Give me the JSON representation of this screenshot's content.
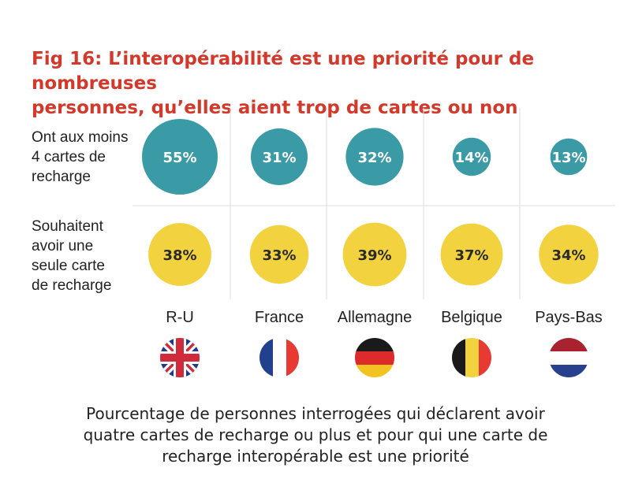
{
  "title": {
    "line1": "Fig 16: L’interopérabilité est une priorité pour de nombreuses",
    "line2": "personnes, qu’elles aient trop de cartes ou non"
  },
  "caption": {
    "line1": "Pourcentage de personnes interrogées qui déclarent avoir",
    "line2": "quatre cartes de recharge ou plus et pour qui une carte de",
    "line3": "recharge interopérable est une priorité"
  },
  "colors": {
    "title": "#d2392b",
    "series_1": "#3a9aa5",
    "series_2": "#f3d23f",
    "bubble_text_light": "#ffffff",
    "bubble_text_dark": "#2b2b2b",
    "grid": "#dddddd"
  },
  "chart_data": {
    "type": "bubble-matrix",
    "unit": "%",
    "categories": [
      "R-U",
      "France",
      "Allemagne",
      "Belgique",
      "Pays-Bas"
    ],
    "series": [
      {
        "name": "Ont aux moins 4 cartes de recharge",
        "label_lines": [
          "Ont aux moins",
          "4 cartes de",
          "recharge"
        ],
        "values": [
          55,
          31,
          32,
          14,
          13
        ],
        "value_labels": [
          "55%",
          "31%",
          "32%",
          "14%",
          "13%"
        ]
      },
      {
        "name": "Souhaitent avoir une seule carte de recharge",
        "label_lines": [
          "Souhaitent",
          "avoir une",
          "seule carte",
          "de recharge"
        ],
        "values": [
          38,
          33,
          39,
          37,
          34
        ],
        "value_labels": [
          "38%",
          "33%",
          "39%",
          "37%",
          "34%"
        ]
      }
    ],
    "flags": [
      {
        "country": "R-U",
        "icon": "uk-flag-icon"
      },
      {
        "country": "France",
        "icon": "france-flag-icon"
      },
      {
        "country": "Allemagne",
        "icon": "germany-flag-icon"
      },
      {
        "country": "Belgique",
        "icon": "belgium-flag-icon"
      },
      {
        "country": "Pays-Bas",
        "icon": "netherlands-flag-icon"
      }
    ]
  }
}
